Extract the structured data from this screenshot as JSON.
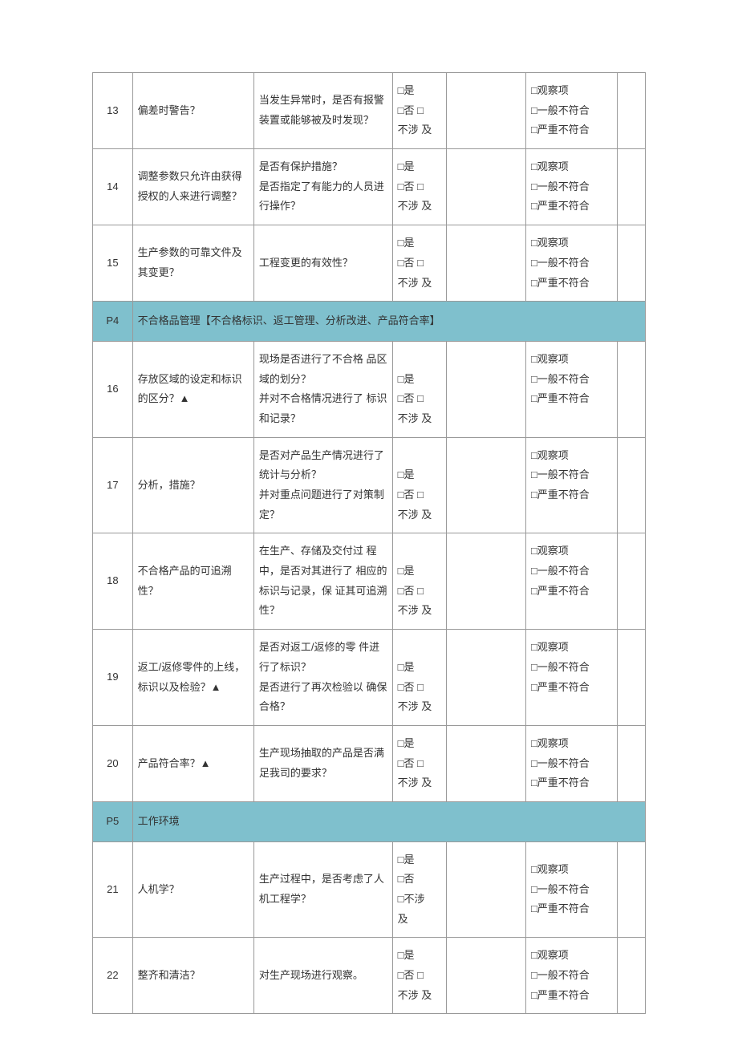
{
  "colors": {
    "section_bg": "#7fc0cd",
    "border": "#999999",
    "text": "#333333",
    "background": "#ffffff"
  },
  "options": {
    "yes": "□是",
    "no": "□否 □",
    "na": "不涉 及",
    "na_stack1": "□不涉",
    "na_stack2": "及"
  },
  "results": {
    "obs": "□观察项",
    "minor": "□一般不符合",
    "major": "□严重不符合"
  },
  "sections": {
    "p4": {
      "code": "P4",
      "title": "不合格品管理【不合格标识、返工管理、分析改进、产品符合率】"
    },
    "p5": {
      "code": "P5",
      "title": "工作环境"
    }
  },
  "rows": {
    "r13": {
      "num": "13",
      "item": "偏差时警告？",
      "desc": "当发生异常时，是否有报警装置或能够被及时发现？"
    },
    "r14": {
      "num": "14",
      "item": "调整参数只允许由获得授权的人来进行调整？",
      "desc": "是否有保护措施？\n是否指定了有能力的人员进行操作？"
    },
    "r15": {
      "num": "15",
      "item": "生产参数的可靠文件及其变更？",
      "desc": "工程变更的有效性？"
    },
    "r16": {
      "num": "16",
      "item": "存放区域的设定和标识的区分？▲",
      "desc": "现场是否进行了不合格 品区域的划分？\n并对不合格情况进行了 标识和记录？"
    },
    "r17": {
      "num": "17",
      "item": "分析，措施？",
      "desc": "是否对产品生产情况进行了统计与分析？\n并对重点问题进行了对策制定？"
    },
    "r18": {
      "num": "18",
      "item": "不合格产品的可追溯性？",
      "desc": "在生产、存储及交付过 程中，是否对其进行了 相应的标识与记录，保 证其可追溯性？"
    },
    "r19": {
      "num": "19",
      "item": "返工/返修零件的上线，标识以及检验？▲",
      "desc": "是否对返工/返修的零 件进行了标识？\n是否进行了再次检验以 确保合格？"
    },
    "r20": {
      "num": "20",
      "item": "产品符合率？▲",
      "desc": "生产现场抽取的产品是否满足我司的要求？"
    },
    "r21": {
      "num": "21",
      "item": "人机学？",
      "desc": "生产过程中，是否考虑了人机工程学？"
    },
    "r22": {
      "num": "22",
      "item": "整齐和清洁？",
      "desc": "对生产现场进行观察。"
    }
  }
}
